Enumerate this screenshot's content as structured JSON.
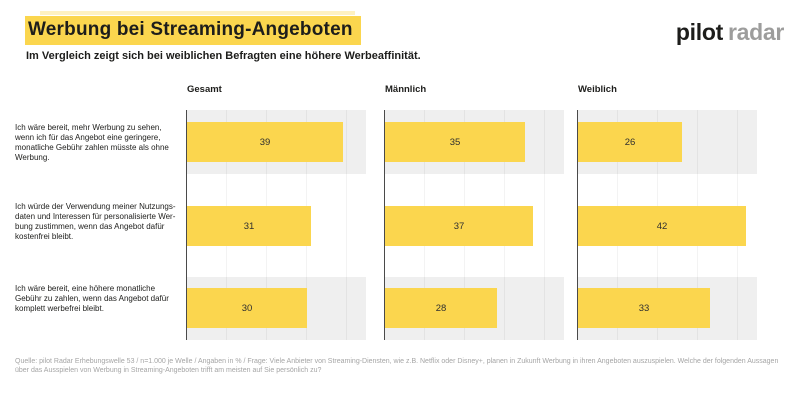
{
  "header": {
    "title": "Werbung bei Streaming-Angeboten",
    "subtitle": "Im Vergleich zeigt sich bei weiblichen Befragten eine höhere Werbeaffinität."
  },
  "logo": {
    "pilot": "pilot",
    "radar": "radar"
  },
  "footer": {
    "source": "Quelle: pilot Radar Erhebungswelle 53 / n=1.000 je Welle / Angaben in % / Frage: Viele Anbieter von Streaming-Diensten, wie z.B. Netflix oder Disney+, planen in Zukunft Werbung in ihren Angeboten auszuspielen. Welche der folgenden Aussagen über das Ausspielen von Werbung in Streaming-Angeboten trifft am meisten auf Sie persönlich zu?"
  },
  "colors": {
    "accent": "#FBD64E",
    "band": "#EFEFEF",
    "axis": "#4A4A4A",
    "text": "#1D1D1B",
    "logo_gray": "#9D9D9C",
    "footer_text": "#A5A5A5"
  },
  "chart_data": {
    "type": "bar",
    "orientation": "horizontal",
    "unit": "%",
    "title": "Werbung bei Streaming-Angeboten",
    "subtitle": "Im Vergleich zeigt sich bei weiblichen Befragten eine höhere Werbeaffinität.",
    "categories": [
      "Ich wäre bereit, mehr Werbung zu sehen,\nwenn ich für das Angebot eine geringere,\nmonatliche Gebühr zahlen müsste als ohne\nWerbung.",
      "Ich würde der Verwendung meiner Nutzungs-\ndaten und Interessen für personalisierte Wer-\nbung zustimmen, wenn das Angebot dafür\nkostenfrei bleibt.",
      "Ich wäre bereit, eine höhere monatliche\nGebühr zu zahlen, wenn das Angebot dafür\nkomplett werbefrei bleibt."
    ],
    "series": [
      {
        "name": "Gesamt",
        "values": [
          39,
          31,
          30
        ]
      },
      {
        "name": "Männlich",
        "values": [
          35,
          37,
          28
        ]
      },
      {
        "name": "Weiblich",
        "values": [
          26,
          42,
          33
        ]
      }
    ],
    "xlim": [
      0,
      45
    ],
    "value_labels": true,
    "bar_color": "#FBD64E",
    "grid": "faint-vertical",
    "legend": "none"
  }
}
